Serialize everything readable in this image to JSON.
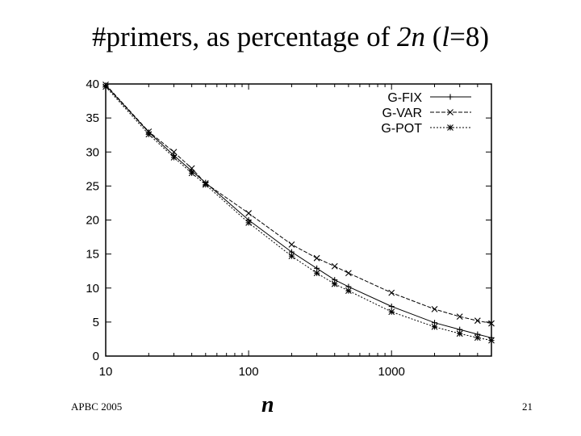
{
  "slide": {
    "title_part1": "#primers, as percentage of ",
    "title_part2": "2n",
    "title_part3": " (",
    "title_part4": "l",
    "title_part5": "=8)",
    "footer_left": "APBC 2005",
    "page_number": "21"
  },
  "chart_data": {
    "type": "line",
    "title": "",
    "xlabel": "n",
    "ylabel": "",
    "xscale": "log",
    "xlim": [
      10,
      5000
    ],
    "ylim": [
      0,
      40
    ],
    "xticks": [
      10,
      100,
      1000
    ],
    "xtick_labels": [
      "10",
      "100",
      "1000"
    ],
    "yticks": [
      0,
      5,
      10,
      15,
      20,
      25,
      30,
      35,
      40
    ],
    "ytick_labels": [
      "0",
      "5",
      "10",
      "15",
      "20",
      "25",
      "30",
      "35",
      "40"
    ],
    "grid": false,
    "legend": "top-right",
    "x": [
      10,
      20,
      30,
      40,
      50,
      100,
      200,
      300,
      400,
      500,
      1000,
      2000,
      3000,
      4000,
      5000
    ],
    "series": [
      {
        "name": "G-FIX",
        "marker": "plus",
        "dash": "solid",
        "values": [
          39.8,
          32.9,
          29.5,
          27.2,
          25.5,
          20.0,
          15.3,
          12.9,
          11.2,
          10.2,
          7.3,
          4.9,
          3.9,
          3.2,
          2.7
        ]
      },
      {
        "name": "G-VAR",
        "marker": "x",
        "dash": "dashed",
        "values": [
          39.9,
          33.0,
          30.0,
          27.6,
          25.4,
          21.0,
          16.4,
          14.4,
          13.2,
          12.2,
          9.3,
          6.9,
          5.8,
          5.2,
          4.8
        ]
      },
      {
        "name": "G-POT",
        "marker": "star",
        "dash": "dotted",
        "values": [
          39.6,
          32.6,
          29.2,
          26.9,
          25.2,
          19.6,
          14.7,
          12.2,
          10.6,
          9.6,
          6.5,
          4.3,
          3.3,
          2.7,
          2.3
        ]
      }
    ]
  }
}
